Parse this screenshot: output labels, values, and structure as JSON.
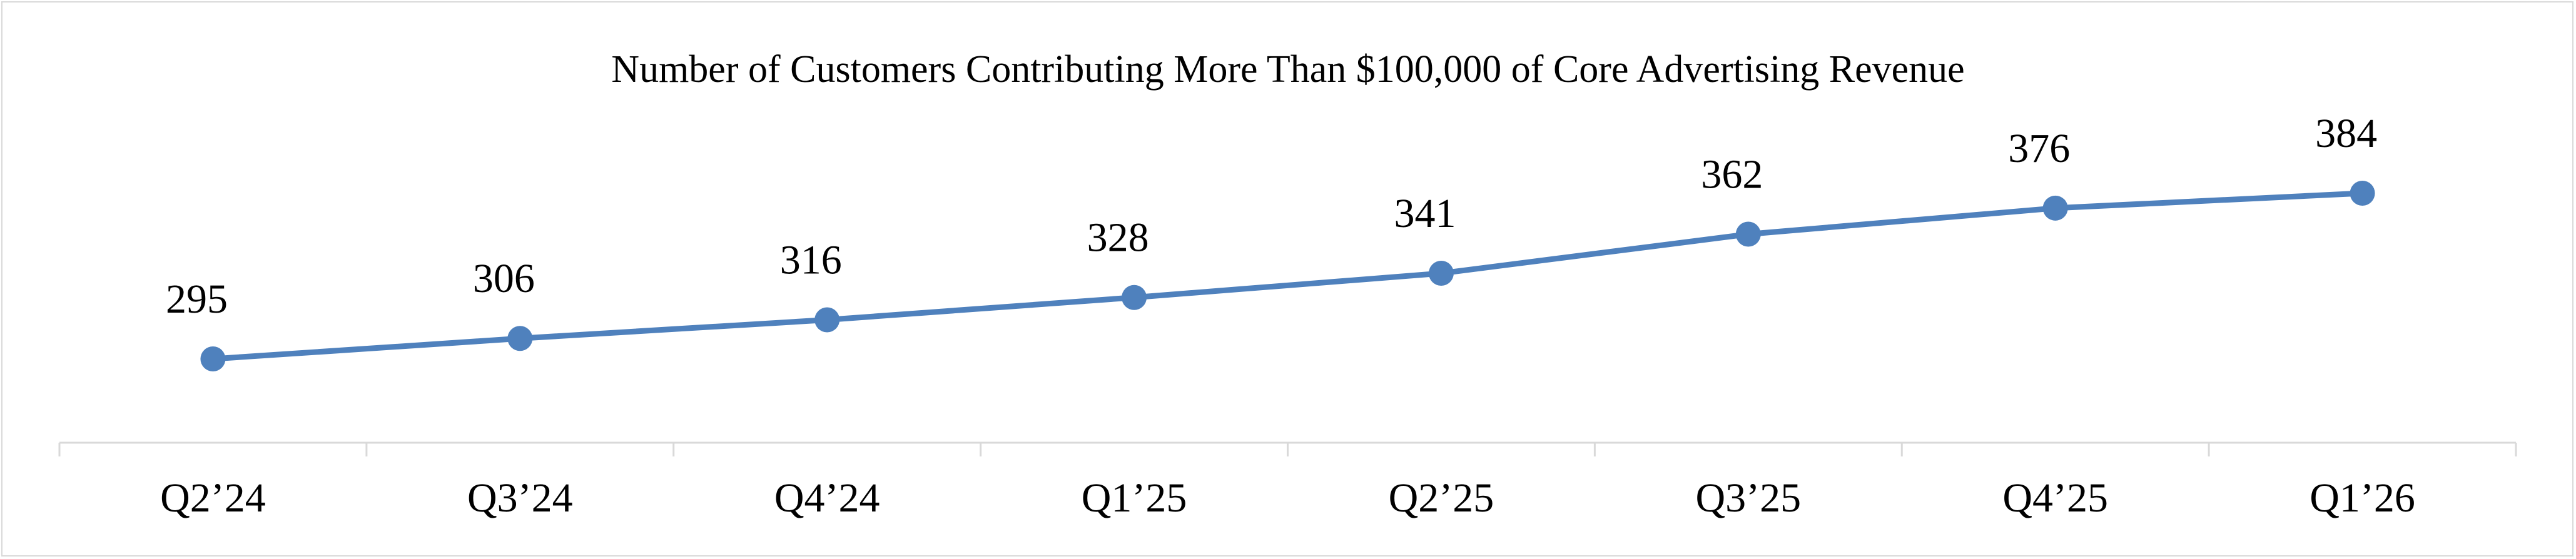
{
  "chart_data": {
    "type": "line",
    "title": "Number of Customers Contributing More Than $100,000 of Core Advertising Revenue",
    "categories": [
      "Q2’24",
      "Q3’24",
      "Q4’24",
      "Q1’25",
      "Q2’25",
      "Q3’25",
      "Q4’25",
      "Q1’26"
    ],
    "series": [
      {
        "values": [
          295,
          306,
          316,
          328,
          341,
          362,
          376,
          384
        ],
        "labels": [
          "295",
          "306",
          "316",
          "328",
          "341",
          "362",
          "376",
          "384"
        ],
        "color": "#4f81bd"
      }
    ],
    "grid": false,
    "legend": "none",
    "y_axis_visible": false,
    "data_labels": "above"
  }
}
